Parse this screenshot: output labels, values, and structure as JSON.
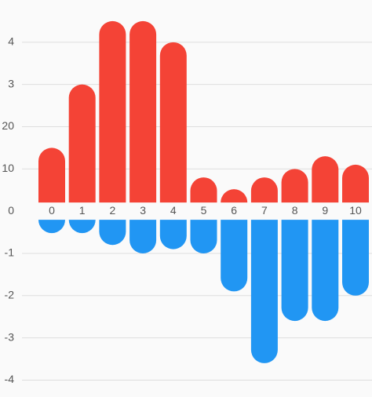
{
  "chart_data": {
    "type": "bar",
    "categories": [
      "0",
      "1",
      "2",
      "3",
      "4",
      "5",
      "6",
      "7",
      "8",
      "9",
      "10"
    ],
    "series": [
      {
        "color": "#f44336",
        "values": [
          15,
          30,
          45,
          45,
          40,
          8,
          4,
          8,
          10,
          13,
          11
        ]
      },
      {
        "color": "#2196f3",
        "values": [
          -3,
          -3,
          -8,
          -10,
          -9,
          -10,
          -19,
          -36,
          -26,
          -26,
          -20
        ]
      }
    ],
    "ylim": [
      -44,
      50
    ],
    "yticks": [
      {
        "value": 40,
        "label": "4"
      },
      {
        "value": 30,
        "label": "3"
      },
      20,
      10,
      0,
      {
        "value": -10,
        "label": "-1"
      },
      {
        "value": -20,
        "label": "-2"
      },
      {
        "value": -30,
        "label": "-3"
      },
      {
        "value": -40,
        "label": "-4"
      }
    ],
    "grid": true
  }
}
